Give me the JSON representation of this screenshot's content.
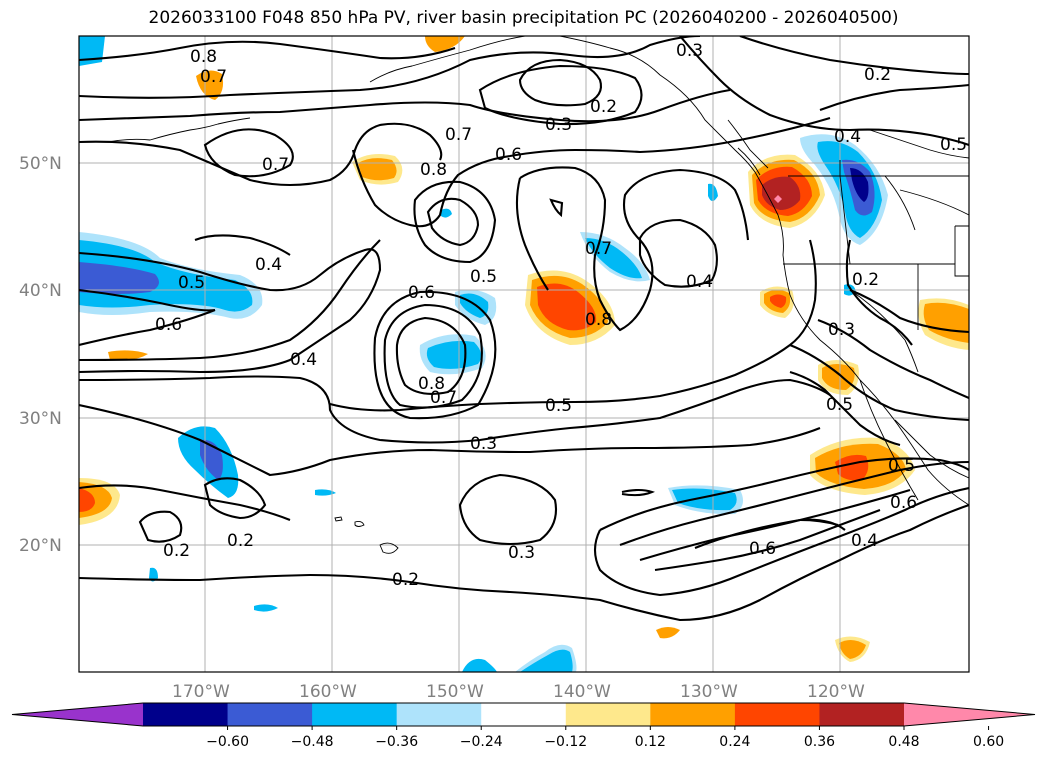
{
  "title": "2026033100 F048 850 hPa PV, river basin precipitation PC (2026040200 - 2026040500)",
  "lat_labels": [
    "50°N",
    "40°N",
    "30°N",
    "20°N"
  ],
  "lon_labels": [
    "170°W",
    "160°W",
    "150°W",
    "140°W",
    "130°W",
    "120°W"
  ],
  "contour_labels": [
    "0.8",
    "0.7",
    "0.3",
    "0.2",
    "0.2",
    "0.3",
    "0.7",
    "0.6",
    "0.8",
    "0.7",
    "0.4",
    "0.5",
    "0.4",
    "0.5",
    "0.6",
    "0.6",
    "0.5",
    "0.7",
    "0.8",
    "0.4",
    "0.2",
    "0.3",
    "0.4",
    "0.8",
    "0.7",
    "0.5",
    "0.3",
    "0.5",
    "0.5",
    "0.6",
    "0.6",
    "0.4",
    "0.2",
    "0.2",
    "0.3",
    "0.2"
  ],
  "colorbar": {
    "ticks": [
      "−0.60",
      "−0.48",
      "−0.36",
      "−0.24",
      "−0.12",
      "0.12",
      "0.24",
      "0.36",
      "0.48",
      "0.60"
    ],
    "colors": [
      "#9933cc",
      "#00008b",
      "#3b5bd4",
      "#00b9f5",
      "#aee3fb",
      "#ffffff",
      "#fee88c",
      "#ffa000",
      "#ff4500",
      "#b22222",
      "#ff88aa"
    ]
  },
  "colors": {
    "contour": "#000000",
    "grid": "#b0b0b0",
    "axis_label": "#808080"
  }
}
